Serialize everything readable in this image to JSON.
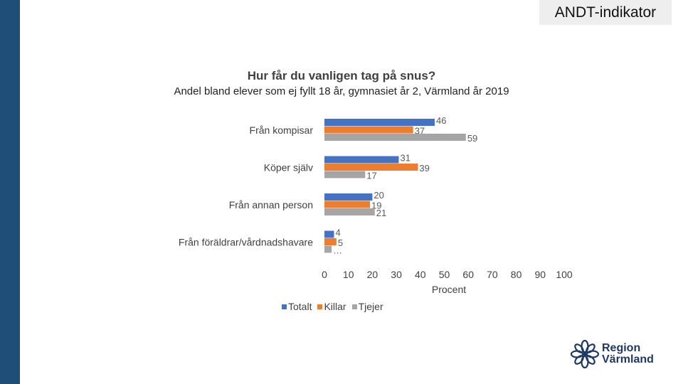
{
  "header": {
    "tag": "ANDT-indikator"
  },
  "chart_data": {
    "type": "bar",
    "orientation": "horizontal",
    "title": "Hur får du vanligen tag på snus?",
    "subtitle": "Andel bland elever som ej fyllt 18 år, gymnasiet år 2, Värmland år 2019",
    "categories": [
      "Från kompisar",
      "Köper själv",
      "Från annan person",
      "Från föräldrar/vårdnadshavare"
    ],
    "series": [
      {
        "name": "Totalt",
        "color": "#4472c4",
        "values": [
          46,
          31,
          20,
          4
        ],
        "labels": [
          "46",
          "31",
          "20",
          "4"
        ]
      },
      {
        "name": "Killar",
        "color": "#ed7d31",
        "values": [
          37,
          39,
          19,
          5
        ],
        "labels": [
          "37",
          "39",
          "19",
          "5"
        ]
      },
      {
        "name": "Tjejer",
        "color": "#a5a5a5",
        "values": [
          59,
          17,
          21,
          3
        ],
        "labels": [
          "59",
          "17",
          "21",
          "…"
        ]
      }
    ],
    "xlim": [
      0,
      100
    ],
    "xticks": [
      "0",
      "10",
      "20",
      "30",
      "40",
      "50",
      "60",
      "70",
      "80",
      "90",
      "100"
    ],
    "xlabel": "Procent",
    "ylabel": "",
    "legend_position": "bottom",
    "grid": false
  },
  "logo": {
    "line1": "Region",
    "line2": "Värmland"
  }
}
